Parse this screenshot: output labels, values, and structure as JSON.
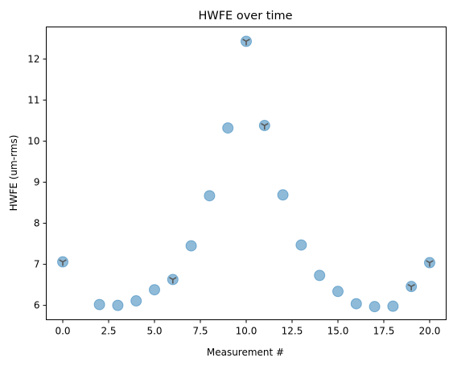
{
  "chart_data": {
    "type": "scatter",
    "title": "HWFE over time",
    "xlabel": "Measurement #",
    "ylabel": "HWFE (um-rms)",
    "xlim": [
      -0.9,
      20.9
    ],
    "ylim": [
      5.65,
      12.78
    ],
    "xticks": [
      0.0,
      2.5,
      5.0,
      7.5,
      10.0,
      12.5,
      15.0,
      17.5,
      20.0
    ],
    "xtick_labels": [
      "0.0",
      "2.5",
      "5.0",
      "7.5",
      "10.0",
      "12.5",
      "15.0",
      "17.5",
      "20.0"
    ],
    "yticks": [
      6,
      7,
      8,
      9,
      10,
      11,
      12
    ],
    "ytick_labels": [
      "6",
      "7",
      "8",
      "9",
      "10",
      "11",
      "12"
    ],
    "grid": false,
    "legend": "none",
    "marker_color": "#1f77b4",
    "marker_alpha": 0.5,
    "overlay_marker_color": "#595959",
    "series": [
      {
        "x": [
          0,
          2,
          3,
          4,
          5,
          6,
          7,
          8,
          9,
          10,
          11,
          12,
          13,
          14,
          15,
          16,
          17,
          18,
          19,
          20
        ],
        "values": [
          7.06,
          6.02,
          6.0,
          6.11,
          6.38,
          6.63,
          7.45,
          8.67,
          10.32,
          12.43,
          10.38,
          8.69,
          7.47,
          6.73,
          6.34,
          6.04,
          5.97,
          5.98,
          6.46,
          7.04
        ],
        "overlay": [
          true,
          false,
          false,
          false,
          false,
          true,
          false,
          false,
          false,
          true,
          true,
          false,
          false,
          false,
          false,
          false,
          false,
          false,
          true,
          true
        ]
      }
    ]
  }
}
